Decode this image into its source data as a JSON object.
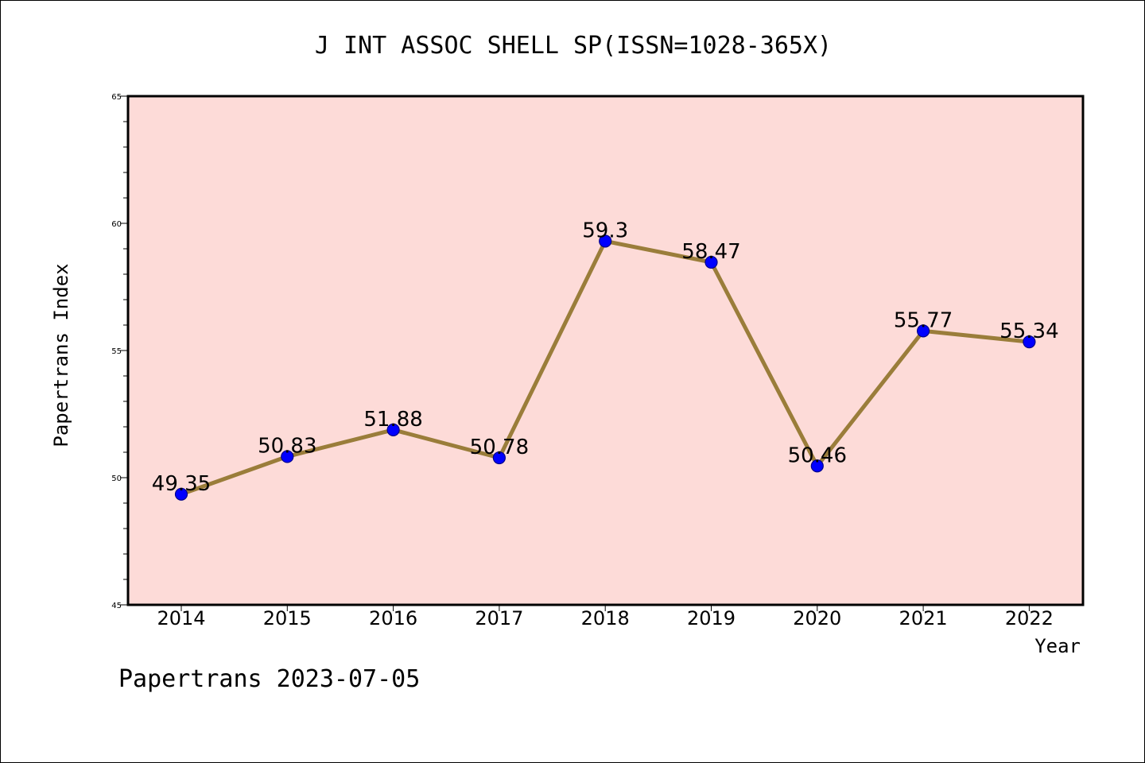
{
  "chart_data": {
    "type": "line",
    "title": "J INT ASSOC SHELL SP(ISSN=1028-365X)",
    "xlabel": "Year",
    "ylabel": "Papertrans Index",
    "categories": [
      "2014",
      "2015",
      "2016",
      "2017",
      "2018",
      "2019",
      "2020",
      "2021",
      "2022"
    ],
    "series": [
      {
        "values": [
          49.35,
          50.83,
          51.88,
          50.78,
          59.3,
          58.47,
          50.46,
          55.77,
          55.34
        ],
        "labels": [
          "49.35",
          "50.83",
          "51.88",
          "50.78",
          "59.3",
          "58.47",
          "50.46",
          "55.77",
          "55.34"
        ]
      }
    ],
    "ylim": [
      45,
      65
    ],
    "yticks": [
      45,
      50,
      55,
      60,
      65
    ],
    "ytick_labels": [
      "45",
      "50",
      "55",
      "60",
      "65"
    ],
    "grid": false,
    "footer": "Papertrans 2023-07-05",
    "colors": {
      "plot_background": "#fddbd8",
      "line": "#9a7d3a",
      "marker": "#0000ff",
      "marker_edge": "#00008b",
      "axis": "#000000"
    }
  }
}
